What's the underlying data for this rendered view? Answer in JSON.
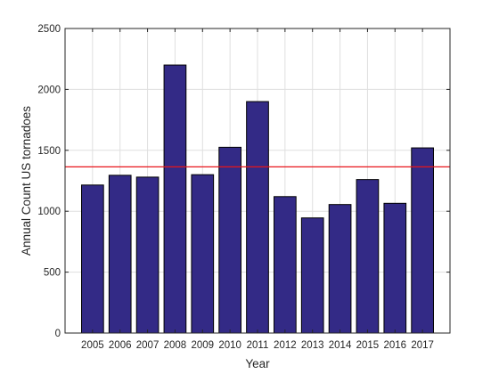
{
  "chart_data": {
    "type": "bar",
    "categories": [
      "2005",
      "2006",
      "2007",
      "2008",
      "2009",
      "2010",
      "2011",
      "2012",
      "2013",
      "2014",
      "2015",
      "2016",
      "2017"
    ],
    "values": [
      1215,
      1295,
      1280,
      2200,
      1300,
      1525,
      1900,
      1120,
      945,
      1055,
      1260,
      1065,
      1520
    ],
    "xlabel": "Year",
    "ylabel": "Annual Count US tornadoes",
    "ylim": [
      0,
      2500
    ],
    "yticks": [
      0,
      500,
      1000,
      1500,
      2000,
      2500
    ],
    "reference_line": {
      "value": 1364,
      "color": "#e8151a"
    },
    "bar_color": "#332a86",
    "grid": true,
    "box": true
  }
}
